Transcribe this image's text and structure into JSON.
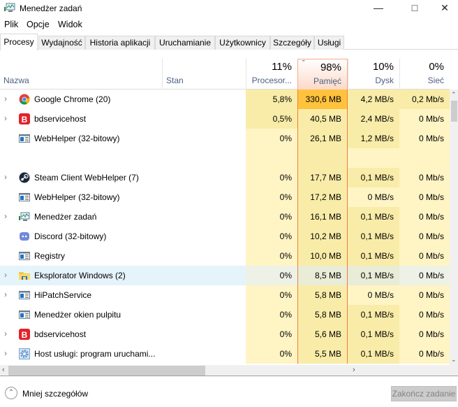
{
  "window": {
    "title": "Menedżer zadań",
    "icon": "task-manager-icon",
    "controls": [
      "minimize",
      "maximize",
      "close"
    ]
  },
  "menu": [
    "Plik",
    "Opcje",
    "Widok"
  ],
  "tabs": [
    {
      "label": "Procesy",
      "active": true
    },
    {
      "label": "Wydajność"
    },
    {
      "label": "Historia aplikacji"
    },
    {
      "label": "Uruchamianie"
    },
    {
      "label": "Użytkownicy"
    },
    {
      "label": "Szczegóły"
    },
    {
      "label": "Usługi"
    }
  ],
  "columns": {
    "name": "Nazwa",
    "status": "Stan",
    "cpu": {
      "pct": "11%",
      "label": "Procesor..."
    },
    "memory": {
      "pct": "98%",
      "label": "Pamięć",
      "sorted": true
    },
    "disk": {
      "pct": "10%",
      "label": "Dysk"
    },
    "network": {
      "pct": "0%",
      "label": "Sieć"
    }
  },
  "colors": {
    "light": "#fff4c4",
    "medium": "#f9eca8",
    "high": "#ffc23d",
    "sort_border": "#f27c3d",
    "selected_row": "#e5f3fb"
  },
  "processes": [
    {
      "name": "Google Chrome (20)",
      "icon": "chrome-icon",
      "expand": true,
      "cpu": "5,8%",
      "mem": "330,6 MB",
      "disk": "4,2 MB/s",
      "net": "0,2 Mb/s",
      "heat": [
        "medium",
        "high",
        "medium",
        "medium"
      ]
    },
    {
      "name": "bdservicehost",
      "icon": "bitdefender-icon",
      "expand": true,
      "cpu": "0,5%",
      "mem": "40,5 MB",
      "disk": "2,4 MB/s",
      "net": "0 Mb/s",
      "heat": [
        "medium",
        "medium",
        "medium",
        "light"
      ]
    },
    {
      "name": "WebHelper (32-bitowy)",
      "icon": "window-app-icon",
      "expand": false,
      "cpu": "0%",
      "mem": "26,1 MB",
      "disk": "1,2 MB/s",
      "net": "0 Mb/s",
      "heat": [
        "light",
        "medium",
        "medium",
        "light"
      ]
    },
    null,
    {
      "name": "Steam Client WebHelper (7)",
      "icon": "steam-icon",
      "expand": true,
      "cpu": "0%",
      "mem": "17,7 MB",
      "disk": "0,1 MB/s",
      "net": "0 Mb/s",
      "heat": [
        "light",
        "medium",
        "medium",
        "light"
      ]
    },
    {
      "name": "WebHelper (32-bitowy)",
      "icon": "window-app-icon",
      "expand": false,
      "cpu": "0%",
      "mem": "17,2 MB",
      "disk": "0 MB/s",
      "net": "0 Mb/s",
      "heat": [
        "light",
        "medium",
        "light",
        "light"
      ]
    },
    {
      "name": "Menedżer zadań",
      "icon": "task-manager-icon",
      "expand": true,
      "cpu": "0%",
      "mem": "16,1 MB",
      "disk": "0,1 MB/s",
      "net": "0 Mb/s",
      "heat": [
        "light",
        "medium",
        "medium",
        "light"
      ]
    },
    {
      "name": "Discord (32-bitowy)",
      "icon": "discord-icon",
      "expand": false,
      "cpu": "0%",
      "mem": "10,2 MB",
      "disk": "0,1 MB/s",
      "net": "0 Mb/s",
      "heat": [
        "light",
        "medium",
        "medium",
        "light"
      ]
    },
    {
      "name": "Registry",
      "icon": "window-app-icon",
      "expand": false,
      "cpu": "0%",
      "mem": "10,0 MB",
      "disk": "0,1 MB/s",
      "net": "0 Mb/s",
      "heat": [
        "light",
        "medium",
        "medium",
        "light"
      ]
    },
    {
      "name": "Eksplorator Windows (2)",
      "icon": "folder-icon",
      "expand": true,
      "selected": true,
      "cpu": "0%",
      "mem": "8,5 MB",
      "disk": "0,1 MB/s",
      "net": "0 Mb/s",
      "heat": [
        "light",
        "medium",
        "medium",
        "light"
      ]
    },
    {
      "name": "HiPatchService",
      "icon": "window-app-icon",
      "expand": true,
      "cpu": "0%",
      "mem": "5,8 MB",
      "disk": "0 MB/s",
      "net": "0 Mb/s",
      "heat": [
        "light",
        "medium",
        "light",
        "light"
      ]
    },
    {
      "name": "Menedżer okien pulpitu",
      "icon": "window-app-icon",
      "expand": false,
      "cpu": "0%",
      "mem": "5,8 MB",
      "disk": "0,1 MB/s",
      "net": "0 Mb/s",
      "heat": [
        "light",
        "medium",
        "medium",
        "light"
      ]
    },
    {
      "name": "bdservicehost",
      "icon": "bitdefender-icon",
      "expand": true,
      "cpu": "0%",
      "mem": "5,6 MB",
      "disk": "0,1 MB/s",
      "net": "0 Mb/s",
      "heat": [
        "light",
        "medium",
        "medium",
        "light"
      ]
    },
    {
      "name": "Host usługi: program uruchami...",
      "icon": "gear-icon",
      "expand": true,
      "cpu": "0%",
      "mem": "5,5 MB",
      "disk": "0,1 MB/s",
      "net": "0 Mb/s",
      "heat": [
        "light",
        "medium",
        "medium",
        "light"
      ]
    }
  ],
  "footer": {
    "less_details": "Mniej szczegółów",
    "end_task": "Zakończ zadanie"
  }
}
